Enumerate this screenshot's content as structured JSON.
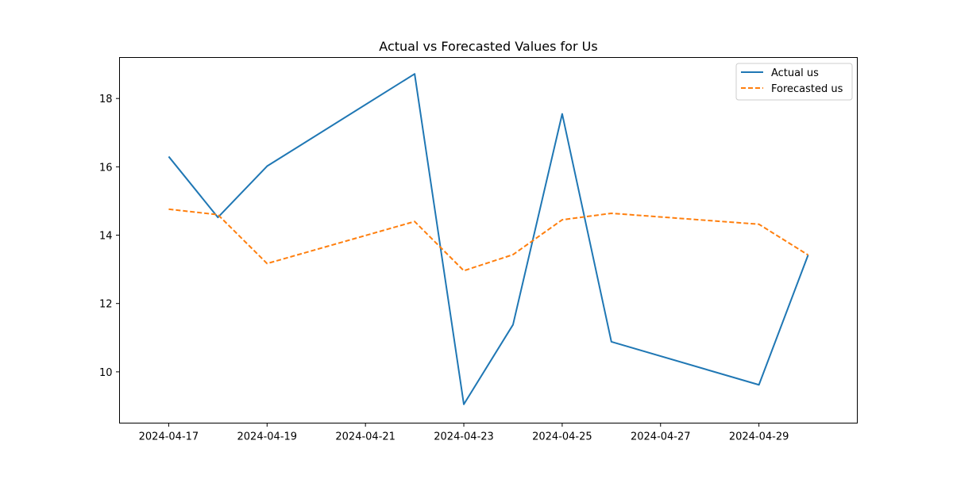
{
  "chart_data": {
    "type": "line",
    "title": "Actual vs Forecasted Values for Us",
    "xlabel": "",
    "ylabel": "",
    "x": [
      "2024-04-17",
      "2024-04-18",
      "2024-04-19",
      "2024-04-22",
      "2024-04-23",
      "2024-04-24",
      "2024-04-25",
      "2024-04-26",
      "2024-04-29",
      "2024-04-30"
    ],
    "series": [
      {
        "name": "Actual us",
        "color": "#1f77b4",
        "style": "solid",
        "values": [
          16.3,
          14.52,
          16.02,
          18.72,
          9.05,
          11.38,
          17.55,
          10.88,
          9.62,
          13.42
        ]
      },
      {
        "name": "Forecasted us",
        "color": "#ff7f0e",
        "style": "dashed",
        "values": [
          14.76,
          14.6,
          13.17,
          14.4,
          12.96,
          13.43,
          14.45,
          14.64,
          14.32,
          13.42
        ]
      }
    ],
    "xlim": [
      "2024-04-16",
      "2024-05-01"
    ],
    "ylim": [
      8.5,
      19.2
    ],
    "xticks": [
      "2024-04-17",
      "2024-04-19",
      "2024-04-21",
      "2024-04-23",
      "2024-04-25",
      "2024-04-27",
      "2024-04-29"
    ],
    "yticks": [
      10,
      12,
      14,
      16,
      18
    ],
    "grid": false,
    "legend_position": "top-right"
  }
}
